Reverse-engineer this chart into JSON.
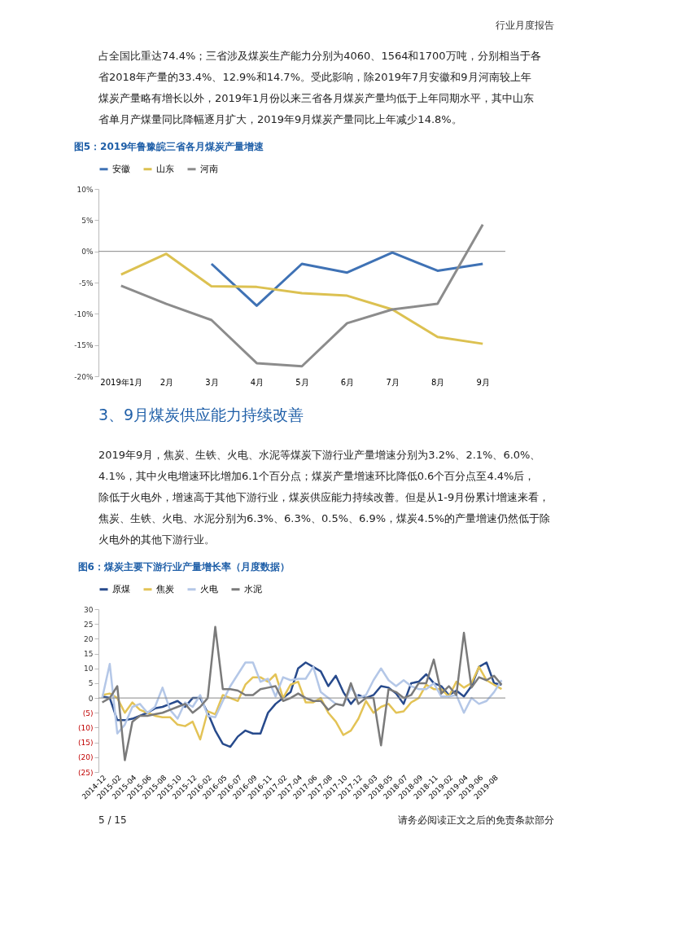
{
  "chart_data": [
    {
      "type": "line",
      "title": "图5：2019年鲁豫皖三省各月煤炭产量增速",
      "annotations": [
        "行业月度报告",
        "占全国比重达74.4%；三省涉及煤炭生产能力分别为4060、1564和1700万吨，分别相当于各",
        "省2018年产量的33.4%、12.9%和14.7%。受此影响，除2019年7月安徽和9月河南较上年",
        "煤炭产量略有增长以外，2019年1月份以来三省各月煤炭产量均低于上年同期水平，其中山东",
        "省单月产煤量同比降幅逐月扩大，2019年9月煤炭产量同比上年减少14.8%。"
      ],
      "categories": [
        "2019年1月",
        "2月",
        "3月",
        "4月",
        "5月",
        "6月",
        "7月",
        "8月",
        "9月"
      ],
      "series": [
        {
          "name": "安徽",
          "color": "#3f72b5",
          "values": [
            null,
            null,
            -2,
            -8.7,
            -2,
            -3.4,
            -0.2,
            -3.1,
            -2
          ]
        },
        {
          "name": "山东",
          "color": "#dcc151",
          "values": [
            -3.7,
            -0.4,
            -5.6,
            -5.7,
            -6.7,
            -7.1,
            -9.3,
            -13.7,
            -14.8
          ]
        },
        {
          "name": "河南",
          "color": "#8c8c8c",
          "values": [
            -5.5,
            -8.4,
            -11,
            -17.9,
            -18.4,
            -11.5,
            -9.3,
            -8.4,
            4.3
          ]
        }
      ],
      "ylim": [
        -20,
        10
      ],
      "yticks": [
        {
          "value": -20,
          "label": "-20%"
        },
        {
          "value": -15,
          "label": "-15%"
        },
        {
          "value": -10,
          "label": "-10%"
        },
        {
          "value": -5,
          "label": "-5%"
        },
        {
          "value": 0,
          "label": "0%"
        },
        {
          "value": 5,
          "label": "5%"
        },
        {
          "value": 10,
          "label": "10%"
        }
      ],
      "ref_lines": [
        {
          "axis": "y",
          "value": 0,
          "color": "#888888"
        }
      ],
      "grid": false,
      "legend": "top",
      "line_style": "solid",
      "marker": "none"
    },
    {
      "type": "line",
      "title": "图6：煤炭主要下游行业产量增长率（月度数据）",
      "annotations": [
        "3、9月煤炭供应能力持续改善",
        "2019年9月，焦炭、生铁、火电、水泥等煤炭下游行业产量增速分别为3.2%、2.1%、6.0%、",
        "4.1%，其中火电增速环比增加6.1个百分点；煤炭产量增速环比降低0.6个百分点至4.4%后，",
        "除低于火电外，增速高于其他下游行业，煤炭供应能力持续改善。但是从1-9月份累计增速来看，",
        "焦炭、生铁、火电、水泥分别为6.3%、6.3%、0.5%、6.9%，煤炭4.5%的产量增速仍然低于除",
        "火电外的其他下游行业。",
        "5 / 15",
        "请务必阅读正文之后的免责条款部分"
      ],
      "categories": [
        "2014-12",
        null,
        "2015-02",
        null,
        "2015-04",
        null,
        "2015-06",
        null,
        "2015-08",
        null,
        "2015-10",
        null,
        "2015-12",
        null,
        "2016-02",
        null,
        "2016-05",
        null,
        "2016-07",
        null,
        "2016-09",
        null,
        "2016-11",
        null,
        "2017-02",
        null,
        "2017-04",
        null,
        "2017-06",
        null,
        "2017-08",
        null,
        "2017-10",
        null,
        "2017-12",
        null,
        "2018-03",
        null,
        "2018-05",
        null,
        "2018-07",
        null,
        "2018-09",
        null,
        "2018-11",
        null,
        "2019-02",
        null,
        "2019-04",
        null,
        "2019-06",
        null,
        "2019-08",
        null
      ],
      "series": [
        {
          "name": "原煤",
          "color": "#274a8c",
          "values": [
            0.5,
            0,
            -7.5,
            -7.5,
            -7,
            -6,
            -5,
            -3.5,
            -3,
            -2,
            -1,
            -3,
            0,
            0,
            -5,
            -11,
            -15.5,
            -16.5,
            -13,
            -11,
            -12,
            -12,
            -5,
            -2,
            0,
            2,
            10,
            12,
            10.5,
            9,
            4,
            7.5,
            2,
            -2,
            1,
            0,
            1,
            4,
            3.5,
            1.5,
            -2,
            5,
            5.5,
            8,
            5,
            4,
            1,
            2.5,
            0.5,
            4,
            10.5,
            12,
            5,
            4.5
          ]
        },
        {
          "name": "焦炭",
          "color": "#e3c356",
          "values": [
            1,
            1.5,
            0,
            -5,
            -1.5,
            -4,
            -5,
            -6,
            -6.5,
            -6.5,
            -9,
            -9.5,
            -8,
            -14,
            -4.5,
            -5.5,
            1,
            0,
            -1,
            4.5,
            7,
            7,
            5.5,
            8,
            0,
            4.5,
            5.5,
            -1.5,
            -1.5,
            0,
            -5,
            -8,
            -12.5,
            -11,
            -7,
            -1,
            -5,
            -3,
            -2,
            -5,
            -4.5,
            -1.5,
            0,
            4.5,
            3,
            3,
            0.5,
            5.5,
            3.5,
            5,
            10.5,
            6,
            4.5,
            3
          ]
        },
        {
          "name": "火电",
          "color": "#b4c7e7",
          "values": [
            0,
            11.5,
            -12,
            -9,
            -3,
            -2,
            -5,
            -3,
            3.5,
            -4,
            -7,
            -1.5,
            -3,
            1,
            -6,
            -6.5,
            -1,
            4,
            8,
            12,
            12,
            5.5,
            6.5,
            0.5,
            7,
            6,
            6.5,
            6.5,
            10.5,
            2,
            0,
            -2,
            -2.5,
            3.5,
            0,
            1,
            6,
            10,
            6,
            4,
            6,
            4,
            3,
            3,
            5,
            0.5,
            0.5,
            1,
            -5,
            0,
            -2,
            -1,
            2,
            6
          ]
        },
        {
          "name": "水泥",
          "color": "#7a7a7a",
          "values": [
            -1.5,
            0,
            4,
            -21,
            -8,
            -6,
            -6,
            -5.5,
            -5,
            -4,
            -3,
            -2,
            -5,
            -3,
            0,
            24,
            3,
            3,
            2.5,
            1,
            1,
            3,
            3.5,
            4,
            -1,
            0,
            1.5,
            0,
            -1,
            -1,
            -4,
            -2,
            -2.5,
            5,
            -2,
            0,
            0,
            -16,
            3,
            2,
            0,
            1,
            5,
            5,
            13,
            1.5,
            4,
            1,
            22,
            3.5,
            7,
            6,
            7.5,
            4.5
          ]
        }
      ],
      "ylim": [
        -25,
        30
      ],
      "yticks": [
        {
          "value": -25,
          "label": "(25)"
        },
        {
          "value": -20,
          "label": "(20)"
        },
        {
          "value": -15,
          "label": "(15)"
        },
        {
          "value": -10,
          "label": "(10)"
        },
        {
          "value": -5,
          "label": "(5)"
        },
        0,
        5,
        10,
        15,
        20,
        25,
        30
      ],
      "ref_lines": [
        {
          "axis": "y",
          "value": 0,
          "color": "#888888"
        }
      ],
      "grid": false,
      "legend": "top",
      "line_style": "solid",
      "marker": "none"
    }
  ]
}
